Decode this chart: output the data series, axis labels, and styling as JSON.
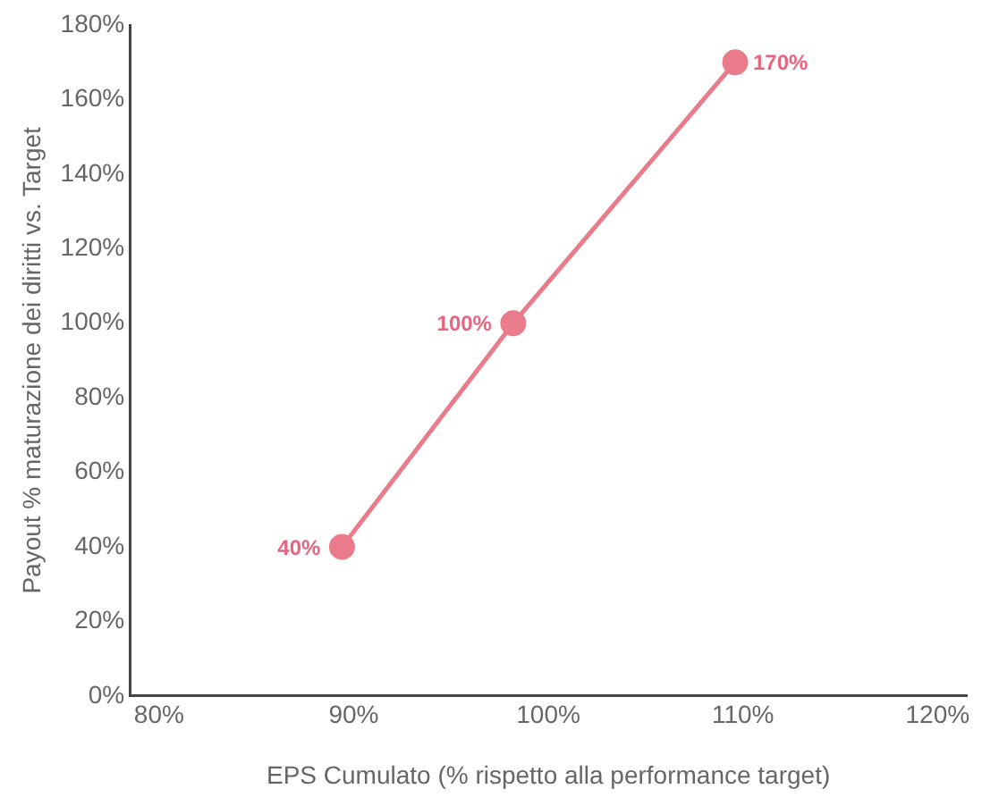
{
  "chart_data": {
    "type": "line",
    "xlabel": "EPS Cumulato (% rispetto alla performance target)",
    "ylabel": "Payout % maturazione dei diritti vs. Target",
    "x": [
      89.4,
      98.2,
      109.6
    ],
    "series": [
      {
        "color": "#ea7b8b",
        "values": [
          40,
          100,
          170
        ],
        "value_labels": [
          "40%",
          "100%",
          "170%"
        ]
      }
    ],
    "xlim": [
      78.5,
      121.5
    ],
    "xticks": [
      {
        "value": 80,
        "label": "80%"
      },
      {
        "value": 90,
        "label": "90%"
      },
      {
        "value": 100,
        "label": "100%"
      },
      {
        "value": 110,
        "label": "110%"
      },
      {
        "value": 120,
        "label": "120%"
      }
    ],
    "ylim": [
      0,
      180
    ],
    "yticks": [
      {
        "value": 0,
        "label": "0%"
      },
      {
        "value": 20,
        "label": "20%"
      },
      {
        "value": 40,
        "label": "40%"
      },
      {
        "value": 60,
        "label": "60%"
      },
      {
        "value": 80,
        "label": "80%"
      },
      {
        "value": 100,
        "label": "100%"
      },
      {
        "value": 120,
        "label": "120%"
      },
      {
        "value": 140,
        "label": "140%"
      },
      {
        "value": 160,
        "label": "160%"
      },
      {
        "value": 180,
        "label": "180%"
      }
    ],
    "grid": false,
    "legend": false,
    "marker": "circle",
    "line_style": "solid"
  }
}
